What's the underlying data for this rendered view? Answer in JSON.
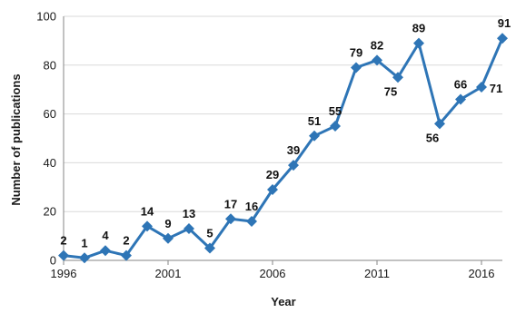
{
  "chart_data": {
    "type": "line",
    "title": "",
    "xlabel": "Year",
    "ylabel": "Number of publications",
    "x": [
      1996,
      1997,
      1998,
      1999,
      2000,
      2001,
      2002,
      2003,
      2004,
      2005,
      2006,
      2007,
      2008,
      2009,
      2010,
      2011,
      2012,
      2013,
      2014,
      2015,
      2016,
      2017
    ],
    "series": [
      {
        "values": [
          2,
          1,
          4,
          2,
          14,
          9,
          13,
          5,
          17,
          16,
          29,
          39,
          51,
          55,
          79,
          82,
          75,
          89,
          56,
          66,
          71,
          91
        ],
        "color": "#2E75B6",
        "marker": "diamond"
      }
    ],
    "xlim": [
      1996,
      2017
    ],
    "ylim": [
      0,
      100
    ],
    "xticks": [
      1996,
      2001,
      2006,
      2011,
      2016
    ],
    "yticks": [
      0,
      20,
      40,
      60,
      80,
      100
    ],
    "grid": "horizontal",
    "legend": "none",
    "gridColor": "#d9d9d9",
    "axisColor": "#868686"
  }
}
